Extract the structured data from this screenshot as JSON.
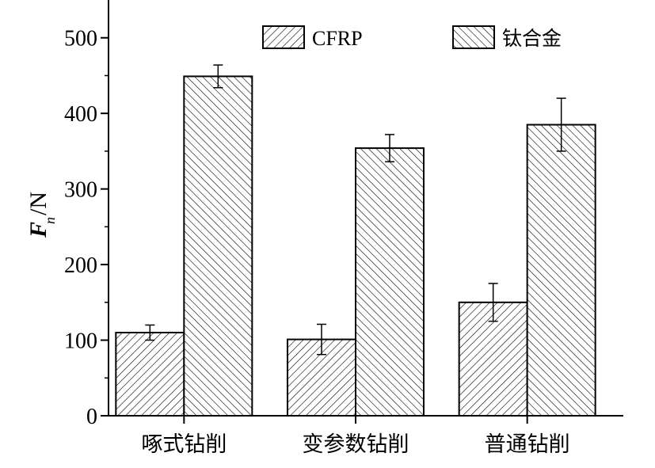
{
  "chart_data": {
    "type": "bar",
    "categories": [
      "啄式钻削",
      "变参数钻削",
      "普通钻削"
    ],
    "series": [
      {
        "name": "CFRP",
        "values": [
          110,
          101,
          150
        ],
        "errors": [
          10,
          20,
          25
        ],
        "pattern": "forward-diagonal-hatch"
      },
      {
        "name": "钛合金",
        "values": [
          449,
          354,
          385
        ],
        "errors": [
          15,
          18,
          35
        ],
        "pattern": "backward-diagonal-hatch"
      }
    ],
    "ylabel": {
      "main": "F",
      "sub": "n",
      "unit": "/N"
    },
    "xlabel": "",
    "title": "",
    "ylim": [
      0,
      550
    ],
    "yticks": [
      0,
      100,
      200,
      300,
      400,
      500
    ],
    "legend_position": "top-right",
    "grid": false
  }
}
